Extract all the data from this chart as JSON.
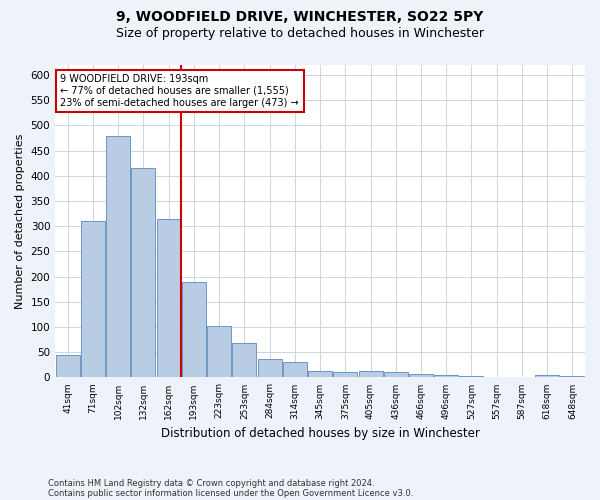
{
  "title": "9, WOODFIELD DRIVE, WINCHESTER, SO22 5PY",
  "subtitle": "Size of property relative to detached houses in Winchester",
  "xlabel": "Distribution of detached houses by size in Winchester",
  "ylabel": "Number of detached properties",
  "categories": [
    "41sqm",
    "71sqm",
    "102sqm",
    "132sqm",
    "162sqm",
    "193sqm",
    "223sqm",
    "253sqm",
    "284sqm",
    "314sqm",
    "345sqm",
    "375sqm",
    "405sqm",
    "436sqm",
    "466sqm",
    "496sqm",
    "527sqm",
    "557sqm",
    "587sqm",
    "618sqm",
    "648sqm"
  ],
  "values": [
    45,
    310,
    480,
    415,
    315,
    190,
    102,
    68,
    37,
    30,
    13,
    10,
    13,
    10,
    6,
    4,
    2,
    0,
    0,
    4,
    2
  ],
  "bar_color": "#b8cce4",
  "bar_edge_color": "#5a8abf",
  "vline_x_index": 5,
  "vline_color": "#cc0000",
  "annotation_line1": "9 WOODFIELD DRIVE: 193sqm",
  "annotation_line2": "← 77% of detached houses are smaller (1,555)",
  "annotation_line3": "23% of semi-detached houses are larger (473) →",
  "annotation_box_color": "#ffffff",
  "annotation_box_edge_color": "#cc0000",
  "ylim": [
    0,
    620
  ],
  "yticks": [
    0,
    50,
    100,
    150,
    200,
    250,
    300,
    350,
    400,
    450,
    500,
    550,
    600
  ],
  "footer_line1": "Contains HM Land Registry data © Crown copyright and database right 2024.",
  "footer_line2": "Contains public sector information licensed under the Open Government Licence v3.0.",
  "background_color": "#eef2f9",
  "plot_bg_color": "#ffffff",
  "title_fontsize": 10,
  "subtitle_fontsize": 9,
  "xlabel_fontsize": 8.5,
  "ylabel_fontsize": 8
}
